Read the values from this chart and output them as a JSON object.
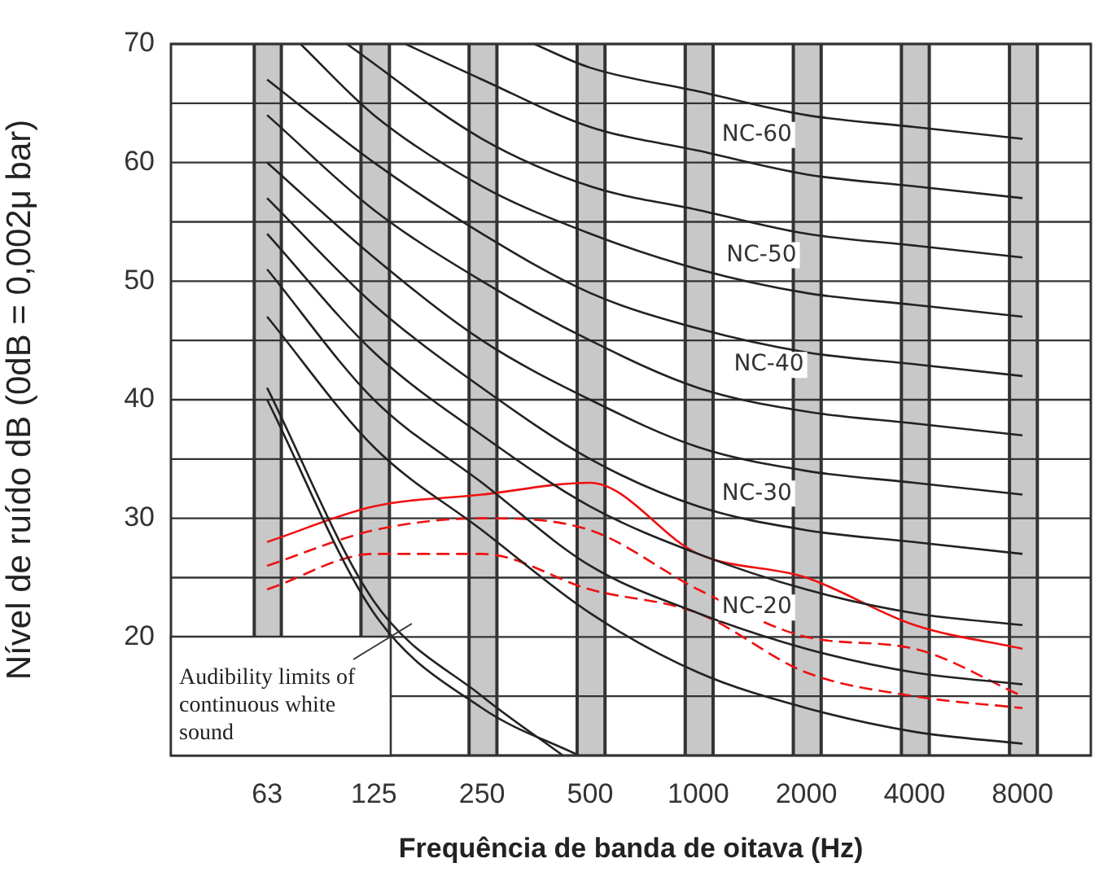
{
  "chart_data": {
    "type": "line",
    "xlabel": "Frequência de banda de oitava (Hz)",
    "ylabel": "Nível de ruído dB (0dB = 0,002μ bar)",
    "log": "x",
    "x": [
      63,
      125,
      250,
      500,
      1000,
      2000,
      4000,
      8000
    ],
    "xlim": [
      34,
      12400
    ],
    "xticks": [
      63,
      125,
      250,
      500,
      1000,
      2000,
      4000,
      8000
    ],
    "ylim": [
      10,
      70
    ],
    "yticks": [
      {
        "value": 10,
        "label": null
      },
      {
        "value": 15,
        "label": null
      },
      20,
      {
        "value": 25,
        "label": null
      },
      30,
      {
        "value": 35,
        "label": null
      },
      40,
      {
        "value": 45,
        "label": null
      },
      50,
      {
        "value": 55,
        "label": null
      },
      60,
      {
        "value": 65,
        "label": null
      },
      70
    ],
    "grid": "y",
    "marker": "none",
    "series": [
      {
        "color": "#222222",
        "values": [
          47,
          36,
          29,
          22,
          17,
          14,
          12,
          11
        ]
      },
      {
        "color": "#222222",
        "values": [
          51,
          40,
          33,
          26,
          22,
          19,
          17,
          16
        ]
      },
      {
        "color": "#222222",
        "values": [
          54,
          44,
          37,
          31,
          27,
          24,
          22,
          21
        ]
      },
      {
        "color": "#222222",
        "values": [
          57,
          48,
          41,
          35,
          31,
          29,
          28,
          27
        ]
      },
      {
        "color": "#222222",
        "values": [
          60,
          52,
          45,
          40,
          36,
          34,
          33,
          32
        ]
      },
      {
        "color": "#222222",
        "values": [
          64,
          56,
          50,
          45,
          41,
          39,
          38,
          37
        ]
      },
      {
        "color": "#222222",
        "values": [
          67,
          60,
          54,
          49,
          46,
          44,
          43,
          42
        ]
      },
      {
        "color": "#222222",
        "x": [
          78,
          125,
          250,
          500,
          1000,
          2000,
          4000,
          8000
        ],
        "values": [
          70,
          64,
          58,
          54,
          51,
          49,
          48,
          47
        ]
      },
      {
        "color": "#222222",
        "x": [
          105,
          250,
          500,
          1000,
          2000,
          4000,
          8000
        ],
        "values": [
          70,
          62,
          58,
          56,
          54,
          53,
          52
        ]
      },
      {
        "color": "#222222",
        "x": [
          153,
          250,
          500,
          1000,
          2000,
          4000,
          8000
        ],
        "values": [
          70,
          67,
          63,
          61,
          59,
          58,
          57
        ]
      },
      {
        "color": "#222222",
        "x": [
          349,
          500,
          1000,
          2000,
          4000,
          8000
        ],
        "values": [
          70,
          68,
          66,
          64,
          63,
          62
        ]
      },
      {
        "color": "#222222",
        "x": [
          63,
          125,
          250,
          420
        ],
        "values": [
          41,
          23,
          15,
          10
        ]
      },
      {
        "color": "#222222",
        "x": [
          63,
          125,
          250,
          465
        ],
        "values": [
          40,
          22,
          14,
          10
        ]
      },
      {
        "color": "#ee1111",
        "line_style": "solid",
        "values": [
          28,
          31,
          32,
          33,
          27,
          25,
          21,
          19
        ]
      },
      {
        "color": "#ee1111",
        "line_style": "dashed",
        "values": [
          26,
          29,
          30,
          29,
          24,
          20,
          19,
          15
        ]
      },
      {
        "color": "#ee1111",
        "line_style": "dashed",
        "values": [
          24,
          27,
          27,
          24,
          22,
          17,
          15,
          14
        ]
      }
    ],
    "bands": [
      {
        "axis": "x",
        "from": 58,
        "to": 69,
        "color": "#c8c8c8"
      },
      {
        "axis": "x",
        "from": 115,
        "to": 138,
        "color": "#c8c8c8"
      },
      {
        "axis": "x",
        "from": 230,
        "to": 275,
        "color": "#c8c8c8"
      },
      {
        "axis": "x",
        "from": 460,
        "to": 550,
        "color": "#c8c8c8"
      },
      {
        "axis": "x",
        "from": 920,
        "to": 1100,
        "color": "#c8c8c8"
      },
      {
        "axis": "x",
        "from": 1840,
        "to": 2200,
        "color": "#c8c8c8"
      },
      {
        "axis": "x",
        "from": 3680,
        "to": 4400,
        "color": "#c8c8c8"
      },
      {
        "axis": "x",
        "from": 7360,
        "to": 8800,
        "color": "#c8c8c8"
      }
    ],
    "annotations": [
      "NC-60",
      "NC-50",
      "NC-40",
      "NC-30",
      "NC-20",
      "Audibility limits of continuous white sound"
    ]
  }
}
